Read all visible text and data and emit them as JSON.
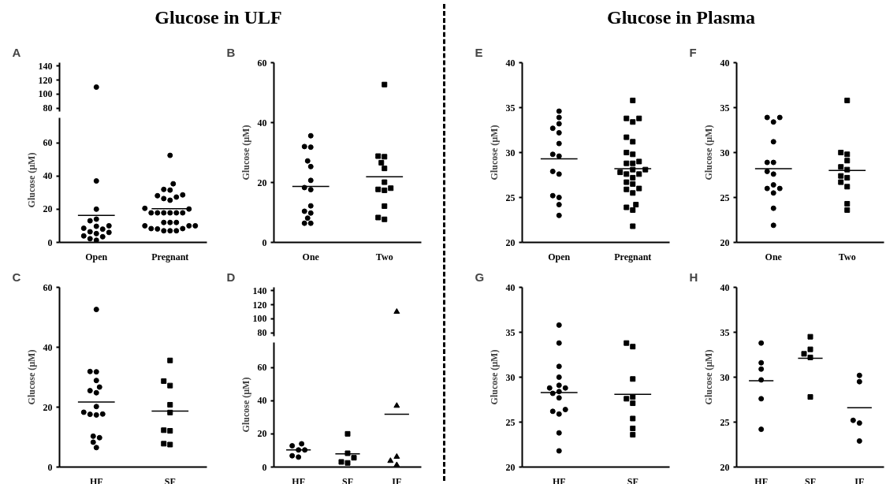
{
  "chart_data": [
    {
      "type": "scatter",
      "title": "A",
      "subtitle": "Glucose in ULF",
      "categories": [
        "Open",
        "Pregnant"
      ],
      "ylim": [
        75,
        145
      ],
      "yticks": [
        80,
        100,
        120,
        140
      ],
      "tick_labels": "y",
      "series": [
        {
          "color": "#000000",
          "marker": "circle",
          "x": [
            "Open"
          ],
          "values": [
            110
          ]
        }
      ]
    },
    {
      "type": "scatter",
      "ylabel": "Glucose (µM)",
      "categories": [
        "Open",
        "Pregnant"
      ],
      "ylim": [
        0,
        75
      ],
      "yticks": [
        0,
        20,
        40,
        60
      ],
      "series": [
        {
          "color": "#000000",
          "marker": "circle",
          "x": [
            "Open",
            "Open",
            "Open",
            "Open",
            "Open",
            "Open",
            "Open",
            "Open",
            "Open",
            "Open",
            "Open",
            "Open",
            "Open",
            "Open",
            "Open"
          ],
          "values": [
            37,
            20,
            13,
            14,
            8,
            10,
            9.7,
            8.5,
            6,
            5.3,
            6.4,
            3.4,
            3.9,
            2.2,
            1.3
          ]
        },
        {
          "color": "#000000",
          "marker": "circle",
          "x": [
            "Pregnant",
            "Pregnant",
            "Pregnant",
            "Pregnant",
            "Pregnant",
            "Pregnant",
            "Pregnant",
            "Pregnant",
            "Pregnant",
            "Pregnant",
            "Pregnant",
            "Pregnant",
            "Pregnant",
            "Pregnant",
            "Pregnant",
            "Pregnant",
            "Pregnant",
            "Pregnant",
            "Pregnant",
            "Pregnant",
            "Pregnant",
            "Pregnant",
            "Pregnant",
            "Pregnant",
            "Pregnant",
            "Pregnant",
            "Pregnant",
            "Pregnant",
            "Pregnant"
          ],
          "values": [
            52.4,
            35.3,
            31.5,
            31.9,
            27.3,
            28.1,
            28.6,
            26.4,
            25.4,
            20.5,
            20.1,
            17.8,
            17.8,
            17.8,
            17.8,
            17.8,
            17.8,
            12,
            12,
            12,
            10,
            10,
            10,
            8.3,
            8.3,
            8.1,
            7,
            7,
            7
          ]
        },
        {
          "type": "bar",
          "color": "#000000",
          "x": [
            "Open",
            "Pregnant"
          ],
          "base": [
            16.3,
            20.3
          ],
          "values": [
            0,
            0
          ]
        }
      ]
    },
    {
      "type": "scatter",
      "title": "B",
      "ylabel": "Glucose (µM)",
      "categories": [
        "One",
        "Two"
      ],
      "ylim": [
        0,
        60
      ],
      "yticks": [
        0,
        20,
        40,
        60
      ],
      "series": [
        {
          "color": "#000000",
          "marker": "circle",
          "x": [
            "One",
            "One",
            "One",
            "One",
            "One",
            "One",
            "One",
            "One",
            "One",
            "One",
            "One",
            "One",
            "One",
            "One"
          ],
          "values": [
            35.6,
            32,
            31.8,
            25.3,
            27.2,
            20.7,
            17.6,
            18.3,
            10.4,
            12.2,
            9.8,
            8.1,
            6.4,
            6.4
          ]
        },
        {
          "color": "#000000",
          "marker": "square",
          "x": [
            "Two",
            "Two",
            "Two",
            "Two",
            "Two",
            "Two",
            "Two",
            "Two",
            "Two",
            "Two",
            "Two",
            "Two"
          ],
          "values": [
            52.7,
            28.8,
            28.6,
            26.6,
            24.7,
            20.1,
            18.1,
            17.4,
            17.7,
            12.1,
            7.7,
            8.3
          ]
        },
        {
          "type": "bar",
          "color": "#000000",
          "x": [
            "One",
            "Two"
          ],
          "base": [
            18.7,
            21.9
          ],
          "values": [
            0,
            0
          ]
        }
      ]
    },
    {
      "type": "scatter",
      "title": "E",
      "subtitle": "Glucose in Plasma",
      "ylabel": "Glucose (µM)",
      "categories": [
        "Open",
        "Pregnant"
      ],
      "ylim": [
        20,
        40
      ],
      "yticks": [
        20,
        25,
        30,
        35,
        40
      ],
      "series": [
        {
          "color": "#000000",
          "marker": "circle",
          "x": [
            "Open",
            "Open",
            "Open",
            "Open",
            "Open",
            "Open",
            "Open",
            "Open",
            "Open",
            "Open",
            "Open",
            "Open",
            "Open",
            "Open"
          ],
          "values": [
            34.6,
            33.9,
            33.2,
            32.7,
            32.2,
            31,
            29.8,
            29.6,
            27.9,
            27.6,
            25,
            25.2,
            24.2,
            23
          ]
        },
        {
          "color": "#000000",
          "marker": "square",
          "x": [
            "Pregnant",
            "Pregnant",
            "Pregnant",
            "Pregnant",
            "Pregnant",
            "Pregnant",
            "Pregnant",
            "Pregnant",
            "Pregnant",
            "Pregnant",
            "Pregnant",
            "Pregnant",
            "Pregnant",
            "Pregnant",
            "Pregnant",
            "Pregnant",
            "Pregnant",
            "Pregnant",
            "Pregnant",
            "Pregnant",
            "Pregnant",
            "Pregnant",
            "Pregnant",
            "Pregnant",
            "Pregnant",
            "Pregnant"
          ],
          "values": [
            35.8,
            33.8,
            33.8,
            33.4,
            31.7,
            31.2,
            30,
            29.8,
            29,
            28.8,
            28.8,
            28.1,
            28.1,
            27.8,
            27.6,
            27.6,
            27.2,
            26.5,
            26.7,
            26,
            25.9,
            25.5,
            23.9,
            24.2,
            23.6,
            21.8
          ]
        },
        {
          "type": "bar",
          "color": "#000000",
          "x": [
            "Open",
            "Pregnant"
          ],
          "base": [
            29.3,
            28.2
          ],
          "values": [
            0,
            0
          ]
        }
      ]
    },
    {
      "type": "scatter",
      "title": "F",
      "ylabel": "Glucose (µM)",
      "categories": [
        "One",
        "Two"
      ],
      "ylim": [
        20,
        40
      ],
      "yticks": [
        20,
        25,
        30,
        35,
        40
      ],
      "series": [
        {
          "color": "#000000",
          "marker": "circle",
          "x": [
            "One",
            "One",
            "One",
            "One",
            "One",
            "One",
            "One",
            "One",
            "One",
            "One",
            "One",
            "One",
            "One",
            "One"
          ],
          "values": [
            33.9,
            33.9,
            33.4,
            31.2,
            28.9,
            28.9,
            27.9,
            27.6,
            26.4,
            26,
            26,
            25.5,
            23.8,
            21.9
          ]
        },
        {
          "color": "#000000",
          "marker": "square",
          "x": [
            "Two",
            "Two",
            "Two",
            "Two",
            "Two",
            "Two",
            "Two",
            "Two",
            "Two",
            "Two",
            "Two",
            "Two"
          ],
          "values": [
            35.8,
            30,
            29.8,
            29.1,
            28.4,
            28.1,
            27.2,
            27.4,
            26.7,
            26.2,
            24.3,
            23.6
          ]
        },
        {
          "type": "bar",
          "color": "#000000",
          "x": [
            "One",
            "Two"
          ],
          "base": [
            28.2,
            28
          ],
          "values": [
            0,
            0
          ]
        }
      ]
    },
    {
      "type": "scatter",
      "title": "C",
      "ylabel": "Glucose (µM)",
      "categories": [
        "HF",
        "SF"
      ],
      "ylim": [
        0,
        60
      ],
      "yticks": [
        0,
        20,
        40,
        60
      ],
      "series": [
        {
          "color": "#000000",
          "marker": "circle",
          "x": [
            "HF",
            "HF",
            "HF",
            "HF",
            "HF",
            "HF",
            "HF",
            "HF",
            "HF",
            "HF",
            "HF",
            "HF",
            "HF",
            "HF",
            "HF",
            "HF"
          ],
          "values": [
            52.6,
            31.8,
            31.9,
            28.9,
            26.7,
            25.5,
            24.8,
            20.2,
            17.7,
            17.4,
            17.6,
            18.3,
            10.3,
            9.8,
            8.3,
            6.5
          ]
        },
        {
          "color": "#000000",
          "marker": "square",
          "x": [
            "SF",
            "SF",
            "SF",
            "SF",
            "SF",
            "SF",
            "SF",
            "SF",
            "SF"
          ],
          "values": [
            35.6,
            27.2,
            28.7,
            20.8,
            18.2,
            12.3,
            12.1,
            7.5,
            7.8
          ]
        },
        {
          "type": "bar",
          "color": "#000000",
          "x": [
            "HF",
            "SF"
          ],
          "base": [
            21.7,
            18.7
          ],
          "values": [
            0,
            0
          ]
        }
      ]
    },
    {
      "type": "scatter",
      "title": "D",
      "categories": [
        "HF",
        "SF",
        "IF"
      ],
      "ylim": [
        75,
        145
      ],
      "yticks": [
        80,
        100,
        120,
        140
      ],
      "tick_labels": "y",
      "series": [
        {
          "color": "#000000",
          "marker": "triangle",
          "x": [
            "IF"
          ],
          "values": [
            110
          ]
        }
      ]
    },
    {
      "type": "scatter",
      "ylabel": "Glucose (µM)",
      "categories": [
        "HF",
        "SF",
        "IF"
      ],
      "ylim": [
        0,
        75
      ],
      "yticks": [
        0,
        20,
        40,
        60
      ],
      "series": [
        {
          "color": "#000000",
          "marker": "circle",
          "x": [
            "HF",
            "HF",
            "HF",
            "HF",
            "HF",
            "HF"
          ],
          "values": [
            14,
            12.8,
            10.3,
            10.3,
            6,
            6.8
          ]
        },
        {
          "color": "#000000",
          "marker": "square",
          "x": [
            "SF",
            "SF",
            "SF",
            "SF",
            "SF"
          ],
          "values": [
            20,
            8.3,
            5.6,
            2.5,
            3.1
          ]
        },
        {
          "color": "#000000",
          "marker": "triangle",
          "x": [
            "IF",
            "IF",
            "IF",
            "IF"
          ],
          "values": [
            36.9,
            6.2,
            3.7,
            1.2
          ]
        },
        {
          "type": "bar",
          "color": "#000000",
          "x": [
            "HF",
            "SF",
            "IF"
          ],
          "base": [
            10.3,
            8,
            31.8
          ],
          "values": [
            0,
            0,
            0
          ]
        }
      ]
    },
    {
      "type": "scatter",
      "title": "G",
      "ylabel": "Glucose (µM)",
      "categories": [
        "HF",
        "SF"
      ],
      "ylim": [
        20,
        40
      ],
      "yticks": [
        20,
        25,
        30,
        35,
        40
      ],
      "series": [
        {
          "color": "#000000",
          "marker": "circle",
          "x": [
            "HF",
            "HF",
            "HF",
            "HF",
            "HF",
            "HF",
            "HF",
            "HF",
            "HF",
            "HF",
            "HF",
            "HF",
            "HF",
            "HF",
            "HF"
          ],
          "values": [
            35.8,
            33.8,
            31.2,
            30,
            29.1,
            28.8,
            28.8,
            28.4,
            28.2,
            27.7,
            26.4,
            26.2,
            25.9,
            23.8,
            21.8
          ]
        },
        {
          "color": "#000000",
          "marker": "square",
          "x": [
            "SF",
            "SF",
            "SF",
            "SF",
            "SF",
            "SF",
            "SF",
            "SF",
            "SF"
          ],
          "values": [
            33.8,
            33.4,
            29.8,
            27.8,
            27.6,
            27.1,
            25.4,
            24.3,
            23.6
          ]
        },
        {
          "type": "bar",
          "color": "#000000",
          "x": [
            "HF",
            "SF"
          ],
          "base": [
            28.3,
            28.1
          ],
          "values": [
            0,
            0
          ]
        }
      ]
    },
    {
      "type": "scatter",
      "title": "H",
      "ylabel": "Glucose (µM)",
      "categories": [
        "HF",
        "SF",
        "IF"
      ],
      "ylim": [
        20,
        40
      ],
      "yticks": [
        20,
        25,
        30,
        35,
        40
      ],
      "series": [
        {
          "color": "#000000",
          "marker": "circle",
          "x": [
            "HF",
            "HF",
            "HF",
            "HF",
            "HF",
            "HF"
          ],
          "values": [
            33.8,
            31.6,
            30.9,
            29.7,
            27.6,
            24.2
          ]
        },
        {
          "color": "#000000",
          "marker": "square",
          "x": [
            "SF",
            "SF",
            "SF",
            "SF",
            "SF"
          ],
          "values": [
            34.5,
            33.1,
            32.6,
            32.2,
            27.8
          ]
        },
        {
          "color": "#000000",
          "marker": "circle",
          "x": [
            "IF",
            "IF",
            "IF",
            "IF",
            "IF"
          ],
          "values": [
            30.2,
            29.5,
            25.2,
            24.9,
            22.9
          ]
        },
        {
          "type": "bar",
          "color": "#000000",
          "x": [
            "HF",
            "SF",
            "IF"
          ],
          "base": [
            29.6,
            32.1,
            26.6
          ],
          "values": [
            0,
            0,
            0
          ]
        }
      ]
    }
  ]
}
